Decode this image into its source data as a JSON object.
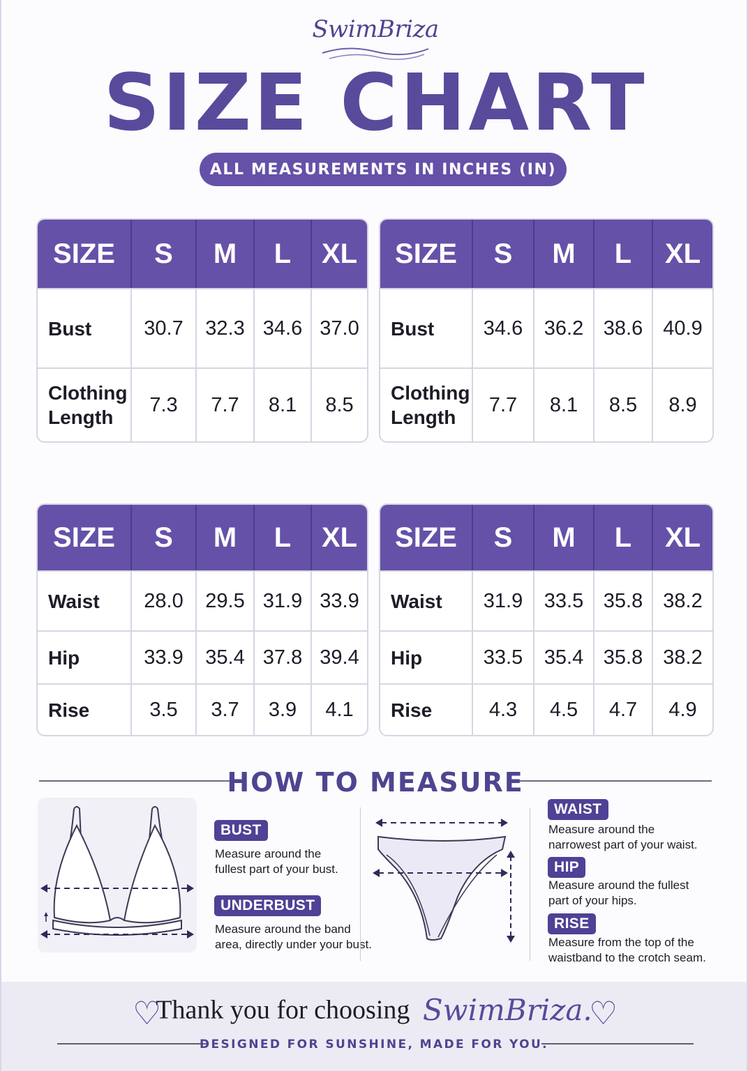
{
  "brand": "SwimBriza",
  "title": "SIZE CHART",
  "subtitle": "ALL MEASUREMENTS IN INCHES (IN)",
  "tables": [
    {
      "headers": [
        "SIZE",
        "S",
        "M",
        "L",
        "XL"
      ],
      "rows": [
        {
          "label": "Bust",
          "values": [
            "30.7",
            "32.3",
            "34.6",
            "37.0"
          ]
        },
        {
          "label": "Clothing Length",
          "values": [
            "7.3",
            "7.7",
            "8.1",
            "8.5"
          ]
        }
      ]
    },
    {
      "headers": [
        "SIZE",
        "S",
        "M",
        "L",
        "XL"
      ],
      "rows": [
        {
          "label": "Bust",
          "values": [
            "34.6",
            "36.2",
            "38.6",
            "40.9"
          ]
        },
        {
          "label": "Clothing Length",
          "values": [
            "7.7",
            "8.1",
            "8.5",
            "8.9"
          ]
        }
      ]
    },
    {
      "headers": [
        "SIZE",
        "S",
        "M",
        "L",
        "XL"
      ],
      "rows": [
        {
          "label": "Waist",
          "values": [
            "28.0",
            "29.5",
            "31.9",
            "33.9"
          ]
        },
        {
          "label": "Hip",
          "values": [
            "33.9",
            "35.4",
            "37.8",
            "39.4"
          ]
        },
        {
          "label": "Rise",
          "values": [
            "3.5",
            "3.7",
            "3.9",
            "4.1"
          ]
        }
      ]
    },
    {
      "headers": [
        "SIZE",
        "S",
        "M",
        "L",
        "XL"
      ],
      "rows": [
        {
          "label": "Waist",
          "values": [
            "31.9",
            "33.5",
            "35.8",
            "38.2"
          ]
        },
        {
          "label": "Hip",
          "values": [
            "33.5",
            "35.4",
            "35.8",
            "38.2"
          ]
        },
        {
          "label": "Rise",
          "values": [
            "4.3",
            "4.5",
            "4.7",
            "4.9"
          ]
        }
      ]
    }
  ],
  "how_to_measure": {
    "heading": "HOW TO MEASURE",
    "bust": {
      "tag": "BUST",
      "text": [
        "Measure around the",
        "fullest part of your bust."
      ]
    },
    "underbust": {
      "tag": "UNDERBUST",
      "text": [
        "Measure around the band",
        "area, directly under your bust."
      ]
    },
    "waist": {
      "tag": "WAIST",
      "text": [
        "Measure around the",
        "narrowest part of your waist."
      ]
    },
    "hip": {
      "tag": "HIP",
      "text": [
        "Measure around the fullest",
        "part of your hips."
      ]
    },
    "rise": {
      "tag": "RISE",
      "text": [
        "Measure from the top of the",
        "waistband to the crotch seam."
      ]
    }
  },
  "footer": {
    "thank_text": "Thank you for choosing",
    "brand": "SwimBriza.",
    "tagline": "DESIGNED FOR SUNSHINE, MADE FOR YOU.",
    "icon": "heart-icon"
  },
  "colors": {
    "accent": "#6551a8",
    "dark_accent": "#4f4195",
    "border": "#d7d5e3"
  }
}
